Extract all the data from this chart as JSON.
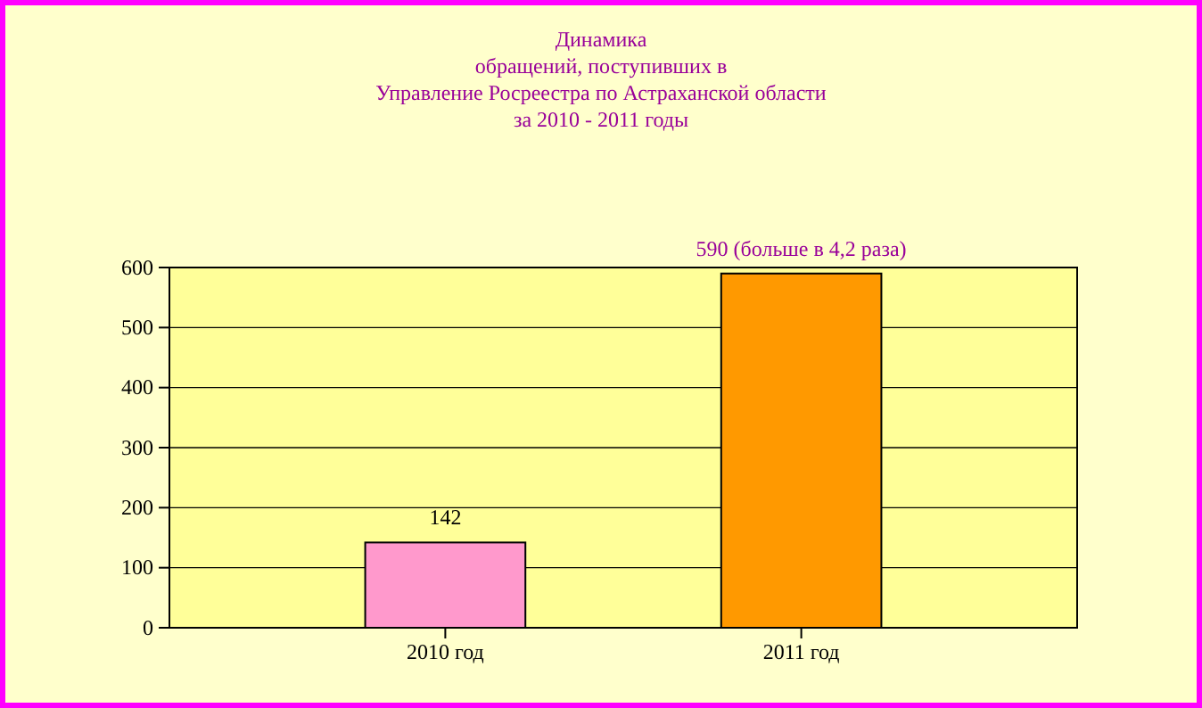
{
  "chart_data": {
    "type": "bar",
    "title": "Динамика\nобращений, поступивших в\nУправление Росреестра по Астраханской области\nза 2010 - 2011 годы",
    "categories": [
      "2010 год",
      "2011 год"
    ],
    "values": [
      142,
      590
    ],
    "colors": [
      "#ff99cc",
      "#ff9900"
    ],
    "value_labels": [
      "142",
      "590 (больше в 4,2 раза)"
    ],
    "ylim": [
      0,
      600
    ],
    "yticks": [
      0,
      100,
      200,
      300,
      400,
      500,
      600
    ],
    "grid": "y"
  }
}
